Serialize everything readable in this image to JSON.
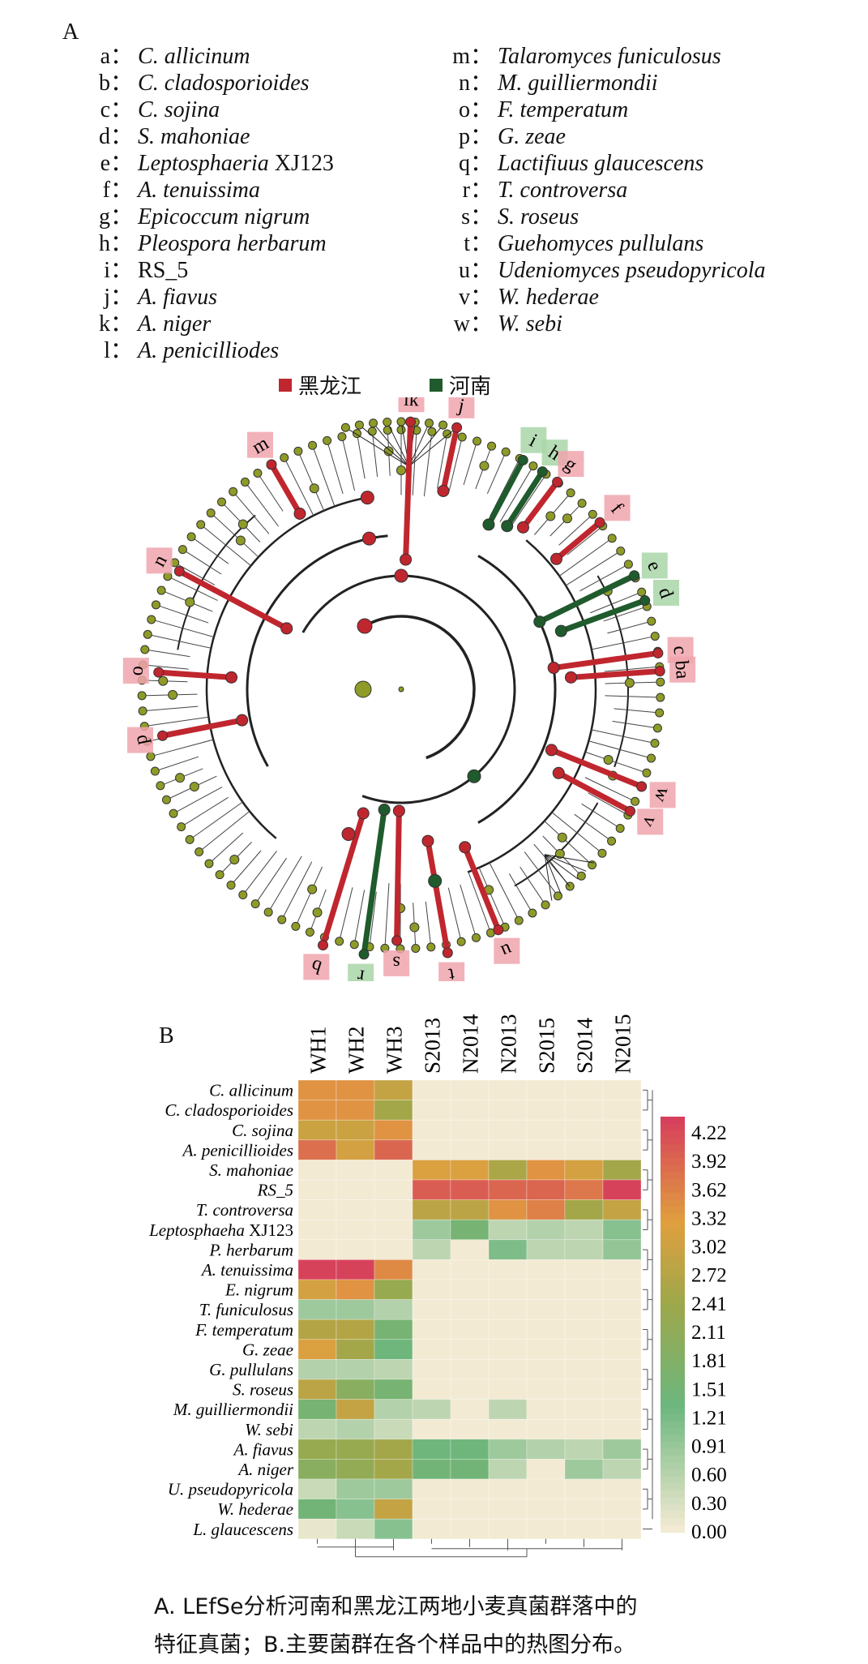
{
  "panel_a": {
    "label": "A",
    "species_left": [
      {
        "key": "a",
        "name": "C. allicinum"
      },
      {
        "key": "b",
        "name": "C. cladosporioides"
      },
      {
        "key": "c",
        "name": "C. sojina"
      },
      {
        "key": "d",
        "name": "S. mahoniae"
      },
      {
        "key": "e",
        "name": "Leptosphaeria",
        "suffix": " XJ123"
      },
      {
        "key": "f",
        "name": "A. tenuissima"
      },
      {
        "key": "g",
        "name": "Epicoccum nigrum"
      },
      {
        "key": "h",
        "name": "Pleospora herbarum"
      },
      {
        "key": "i",
        "name": "",
        "suffix": "RS_5"
      },
      {
        "key": "j",
        "name": "A. fiavus"
      },
      {
        "key": "k",
        "name": "A. niger"
      },
      {
        "key": "l",
        "name": "A. penicilliodes"
      }
    ],
    "species_right": [
      {
        "key": "m",
        "name": "Talaromyces funiculosus"
      },
      {
        "key": "n",
        "name": "M. guilliermondii"
      },
      {
        "key": "o",
        "name": "F. temperatum"
      },
      {
        "key": "p",
        "name": "G. zeae"
      },
      {
        "key": "q",
        "name": "Lactifiuus glaucescens"
      },
      {
        "key": "r",
        "name": "T. controversa"
      },
      {
        "key": "s",
        "name": "S. roseus"
      },
      {
        "key": "t",
        "name": "Guehomyces pullulans"
      },
      {
        "key": "u",
        "name": "Udeniomyces pseudopyricola"
      },
      {
        "key": "v",
        "name": "W. hederae"
      },
      {
        "key": "w",
        "name": "W. sebi"
      }
    ],
    "colon": "：",
    "regions": [
      {
        "name": "黑龙江",
        "color": "#c0262e"
      },
      {
        "name": "河南",
        "color": "#1f5b2c"
      }
    ],
    "node_color": "#8f9b27",
    "clade_labels": [
      "lk",
      "j",
      "m",
      "n",
      "o",
      "p",
      "i",
      "h",
      "g",
      "f",
      "e",
      "d",
      "c",
      "ba",
      "w",
      "v",
      "u",
      "b",
      "r",
      "s",
      "t"
    ]
  },
  "panel_b": {
    "label": "B",
    "chart_data": {
      "type": "heatmap",
      "columns": [
        "WH1",
        "WH2",
        "WH3",
        "S2013",
        "N2014",
        "N2013",
        "S2015",
        "S2014",
        "N2015"
      ],
      "rows": [
        {
          "name": "C. allicinum",
          "values": [
            3.3,
            3.3,
            2.8,
            0,
            0,
            0,
            0,
            0,
            0
          ]
        },
        {
          "name": "C. cladosporioides",
          "values": [
            3.3,
            3.3,
            2.4,
            0,
            0,
            0,
            0,
            0,
            0
          ]
        },
        {
          "name": "C. sojina",
          "values": [
            2.9,
            2.9,
            3.3,
            0,
            0,
            0,
            0,
            0,
            0
          ]
        },
        {
          "name": "A. penicillioides",
          "values": [
            3.7,
            3.0,
            3.8,
            0,
            0,
            0,
            0,
            0,
            0
          ]
        },
        {
          "name": "S. mahoniae",
          "values": [
            0,
            0,
            0,
            3.1,
            3.1,
            2.5,
            3.3,
            3.0,
            2.4
          ]
        },
        {
          "name": "RS_5",
          "values": [
            0,
            0,
            0,
            3.9,
            3.9,
            3.8,
            3.8,
            3.6,
            4.2
          ]
        },
        {
          "name": "T. controversa",
          "values": [
            0,
            0,
            0,
            2.7,
            2.7,
            3.3,
            3.5,
            2.4,
            2.8
          ]
        },
        {
          "name": "Leptosphaeha",
          "suffix": " XJ123",
          "values": [
            0,
            0,
            0,
            0.8,
            1.5,
            0.5,
            0.6,
            0.5,
            1.0
          ]
        },
        {
          "name": "P. herbarum",
          "values": [
            0,
            0,
            0,
            0.5,
            0,
            1.1,
            0.5,
            0.5,
            0.9
          ]
        },
        {
          "name": "A. tenuissima",
          "values": [
            4.2,
            4.2,
            3.4,
            0,
            0,
            0,
            0,
            0,
            0
          ]
        },
        {
          "name": "E. nigrum",
          "values": [
            3.0,
            3.3,
            2.2,
            0,
            0,
            0,
            0,
            0,
            0
          ]
        },
        {
          "name": "T. funiculosus",
          "values": [
            0.8,
            0.8,
            0.6,
            0,
            0,
            0,
            0,
            0,
            0
          ]
        },
        {
          "name": "F. temperatum",
          "values": [
            2.6,
            2.6,
            1.5,
            0,
            0,
            0,
            0,
            0,
            0
          ]
        },
        {
          "name": "G. zeae",
          "values": [
            3.1,
            2.4,
            1.3,
            0,
            0,
            0,
            0,
            0,
            0
          ]
        },
        {
          "name": "G. pullulans",
          "values": [
            0.6,
            0.6,
            0.5,
            0,
            0,
            0,
            0,
            0,
            0
          ]
        },
        {
          "name": "S. roseus",
          "values": [
            2.7,
            1.9,
            1.5,
            0,
            0,
            0,
            0,
            0,
            0
          ]
        },
        {
          "name": "M. guilliermondii",
          "values": [
            1.5,
            2.8,
            0.6,
            0.5,
            0,
            0.5,
            0,
            0,
            0
          ]
        },
        {
          "name": "W. sebi",
          "values": [
            0.5,
            0.6,
            0.4,
            0,
            0,
            0,
            0,
            0,
            0
          ]
        },
        {
          "name": "A. fiavus",
          "values": [
            2.2,
            2.2,
            2.4,
            1.3,
            1.3,
            0.8,
            0.6,
            0.5,
            0.8
          ]
        },
        {
          "name": "A. niger",
          "values": [
            1.9,
            2.1,
            2.4,
            1.4,
            1.4,
            0.5,
            0,
            0.8,
            0.5
          ]
        },
        {
          "name": "U. pseudopyricola",
          "values": [
            0.4,
            0.8,
            0.8,
            0,
            0,
            0,
            0,
            0,
            0
          ]
        },
        {
          "name": "W. hederae",
          "values": [
            1.4,
            1.0,
            2.8,
            0,
            0,
            0,
            0,
            0,
            0
          ]
        },
        {
          "name": "L. glaucescens",
          "values": [
            0.1,
            0.4,
            1.0,
            0,
            0,
            0,
            0,
            0,
            0
          ]
        }
      ],
      "scale_ticks": [
        "4.22",
        "3.92",
        "3.62",
        "3.32",
        "3.02",
        "2.72",
        "2.41",
        "2.11",
        "1.81",
        "1.51",
        "1.21",
        "0.91",
        "0.60",
        "0.30",
        "0.00"
      ],
      "range": [
        0,
        4.22
      ],
      "colors": {
        "low": "#f3ead3",
        "mid_low": "#6cb67e",
        "mid": "#9da84a",
        "mid_high": "#e09f3f",
        "high": "#d7405c"
      },
      "dendrogram": "right-and-bottom"
    }
  },
  "caption": {
    "line1": "A. LEfSe分析河南和黑龙江两地小麦真菌群落中的",
    "line2": "特征真菌；B.主要菌群在各个样品中的热图分布。"
  }
}
